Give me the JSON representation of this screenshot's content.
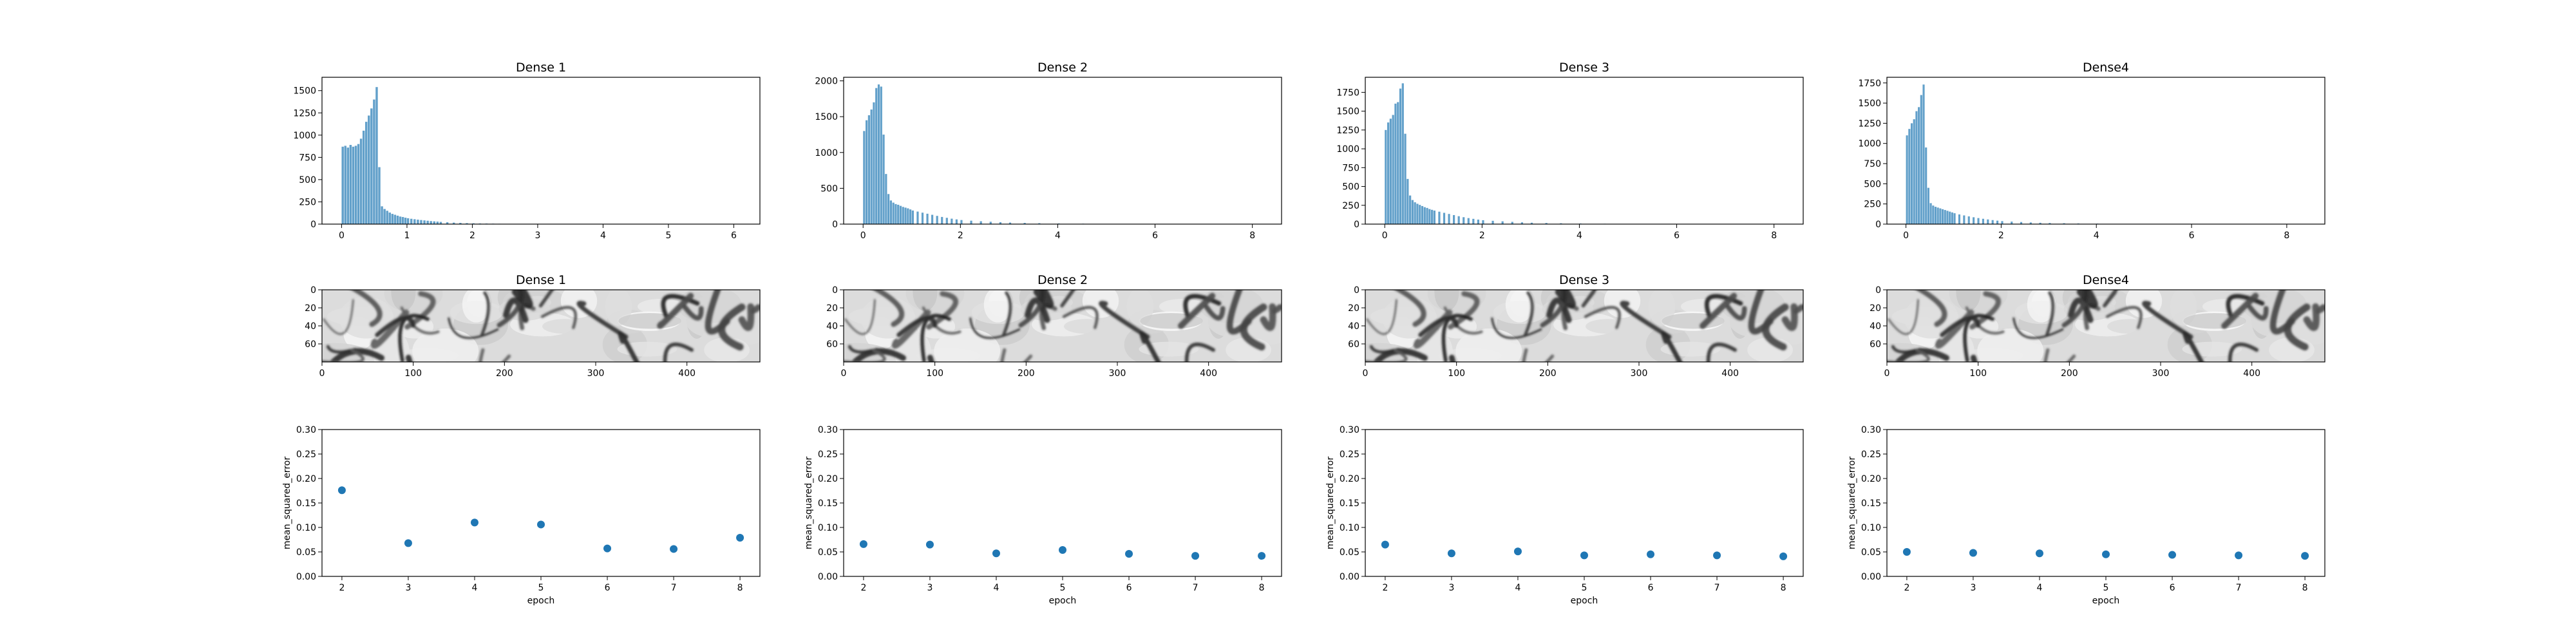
{
  "colors": {
    "series": "#1f77b4",
    "image_dark": "#202020",
    "image_light": "#f2f2f2"
  },
  "chart_data": [
    {
      "type": "bar",
      "panel": "hist-1",
      "title": "Dense 1",
      "xlim": [
        -0.3,
        6.4
      ],
      "ylim": [
        0,
        1650
      ],
      "xticks": [
        0,
        1,
        2,
        3,
        4,
        5,
        6
      ],
      "yticks": [
        0,
        250,
        500,
        750,
        1000,
        1250,
        1500
      ],
      "bin_width": 0.04,
      "bins": [
        [
          0,
          870
        ],
        [
          0.04,
          880
        ],
        [
          0.08,
          860
        ],
        [
          0.12,
          890
        ],
        [
          0.16,
          870
        ],
        [
          0.2,
          880
        ],
        [
          0.24,
          900
        ],
        [
          0.28,
          960
        ],
        [
          0.32,
          1050
        ],
        [
          0.36,
          1150
        ],
        [
          0.4,
          1220
        ],
        [
          0.44,
          1300
        ],
        [
          0.48,
          1400
        ],
        [
          0.52,
          1540
        ],
        [
          0.56,
          640
        ],
        [
          0.6,
          200
        ],
        [
          0.64,
          170
        ],
        [
          0.68,
          150
        ],
        [
          0.72,
          130
        ],
        [
          0.76,
          115
        ],
        [
          0.8,
          105
        ],
        [
          0.84,
          95
        ],
        [
          0.88,
          85
        ],
        [
          0.92,
          80
        ],
        [
          0.96,
          72
        ],
        [
          1.0,
          66
        ],
        [
          1.05,
          60
        ],
        [
          1.1,
          55
        ],
        [
          1.15,
          50
        ],
        [
          1.2,
          46
        ],
        [
          1.25,
          42
        ],
        [
          1.3,
          38
        ],
        [
          1.35,
          34
        ],
        [
          1.4,
          31
        ],
        [
          1.45,
          28
        ],
        [
          1.5,
          25
        ],
        [
          1.6,
          21
        ],
        [
          1.7,
          17
        ],
        [
          1.8,
          14
        ],
        [
          1.9,
          11
        ],
        [
          2.0,
          9
        ],
        [
          2.1,
          7
        ],
        [
          2.2,
          6
        ],
        [
          2.3,
          5
        ],
        [
          2.4,
          4
        ],
        [
          2.5,
          3
        ],
        [
          2.6,
          2
        ],
        [
          2.8,
          1
        ]
      ]
    },
    {
      "type": "bar",
      "panel": "hist-2",
      "title": "Dense 2",
      "xlim": [
        -0.4,
        8.6
      ],
      "ylim": [
        0,
        2050
      ],
      "xticks": [
        0,
        2,
        4,
        6,
        8
      ],
      "yticks": [
        0,
        500,
        1000,
        1500,
        2000
      ],
      "bin_width": 0.05,
      "bins": [
        [
          0,
          1300
        ],
        [
          0.05,
          1450
        ],
        [
          0.1,
          1520
        ],
        [
          0.15,
          1600
        ],
        [
          0.2,
          1700
        ],
        [
          0.25,
          1900
        ],
        [
          0.3,
          1950
        ],
        [
          0.35,
          1920
        ],
        [
          0.4,
          1250
        ],
        [
          0.45,
          700
        ],
        [
          0.5,
          420
        ],
        [
          0.55,
          330
        ],
        [
          0.6,
          300
        ],
        [
          0.65,
          280
        ],
        [
          0.7,
          270
        ],
        [
          0.75,
          255
        ],
        [
          0.8,
          240
        ],
        [
          0.85,
          230
        ],
        [
          0.9,
          220
        ],
        [
          0.95,
          205
        ],
        [
          1.0,
          190
        ],
        [
          1.1,
          175
        ],
        [
          1.2,
          160
        ],
        [
          1.3,
          145
        ],
        [
          1.4,
          130
        ],
        [
          1.5,
          115
        ],
        [
          1.6,
          100
        ],
        [
          1.7,
          88
        ],
        [
          1.8,
          76
        ],
        [
          1.9,
          66
        ],
        [
          2.0,
          57
        ],
        [
          2.2,
          48
        ],
        [
          2.4,
          40
        ],
        [
          2.6,
          33
        ],
        [
          2.8,
          27
        ],
        [
          3.0,
          22
        ],
        [
          3.3,
          17
        ],
        [
          3.6,
          13
        ],
        [
          4.0,
          9
        ],
        [
          4.5,
          6
        ],
        [
          5.0,
          4
        ],
        [
          5.5,
          3
        ],
        [
          6.0,
          2
        ],
        [
          7.0,
          1
        ]
      ]
    },
    {
      "type": "bar",
      "panel": "hist-3",
      "title": "Dense 3",
      "xlim": [
        -0.4,
        8.6
      ],
      "ylim": [
        0,
        1950
      ],
      "xticks": [
        0,
        2,
        4,
        6,
        8
      ],
      "yticks": [
        0,
        250,
        500,
        750,
        1000,
        1250,
        1500,
        1750
      ],
      "bin_width": 0.05,
      "bins": [
        [
          0,
          1250
        ],
        [
          0.05,
          1350
        ],
        [
          0.1,
          1400
        ],
        [
          0.15,
          1450
        ],
        [
          0.2,
          1600
        ],
        [
          0.25,
          1620
        ],
        [
          0.3,
          1800
        ],
        [
          0.35,
          1870
        ],
        [
          0.4,
          1200
        ],
        [
          0.45,
          600
        ],
        [
          0.5,
          380
        ],
        [
          0.55,
          320
        ],
        [
          0.6,
          290
        ],
        [
          0.65,
          270
        ],
        [
          0.7,
          255
        ],
        [
          0.75,
          240
        ],
        [
          0.8,
          225
        ],
        [
          0.85,
          215
        ],
        [
          0.9,
          200
        ],
        [
          0.95,
          190
        ],
        [
          1.0,
          180
        ],
        [
          1.1,
          165
        ],
        [
          1.2,
          150
        ],
        [
          1.3,
          135
        ],
        [
          1.4,
          120
        ],
        [
          1.5,
          105
        ],
        [
          1.6,
          92
        ],
        [
          1.7,
          80
        ],
        [
          1.8,
          70
        ],
        [
          1.9,
          60
        ],
        [
          2.0,
          52
        ],
        [
          2.2,
          44
        ],
        [
          2.4,
          37
        ],
        [
          2.6,
          30
        ],
        [
          2.8,
          24
        ],
        [
          3.0,
          19
        ],
        [
          3.3,
          15
        ],
        [
          3.6,
          11
        ],
        [
          4.0,
          8
        ],
        [
          4.5,
          5
        ],
        [
          5.0,
          3
        ],
        [
          6.0,
          2
        ],
        [
          7.0,
          1
        ]
      ]
    },
    {
      "type": "bar",
      "panel": "hist-4",
      "title": "Dense4",
      "xlim": [
        -0.4,
        8.8
      ],
      "ylim": [
        0,
        1820
      ],
      "xticks": [
        0,
        2,
        4,
        6,
        8
      ],
      "yticks": [
        0,
        250,
        500,
        750,
        1000,
        1250,
        1500,
        1750
      ],
      "bin_width": 0.05,
      "bins": [
        [
          0,
          1100
        ],
        [
          0.05,
          1180
        ],
        [
          0.1,
          1250
        ],
        [
          0.15,
          1300
        ],
        [
          0.2,
          1400
        ],
        [
          0.25,
          1450
        ],
        [
          0.3,
          1600
        ],
        [
          0.35,
          1730
        ],
        [
          0.4,
          950
        ],
        [
          0.45,
          450
        ],
        [
          0.5,
          260
        ],
        [
          0.55,
          230
        ],
        [
          0.6,
          215
        ],
        [
          0.65,
          205
        ],
        [
          0.7,
          195
        ],
        [
          0.75,
          185
        ],
        [
          0.8,
          175
        ],
        [
          0.85,
          165
        ],
        [
          0.9,
          155
        ],
        [
          0.95,
          145
        ],
        [
          1.0,
          135
        ],
        [
          1.1,
          120
        ],
        [
          1.2,
          108
        ],
        [
          1.3,
          96
        ],
        [
          1.4,
          85
        ],
        [
          1.5,
          75
        ],
        [
          1.6,
          66
        ],
        [
          1.7,
          58
        ],
        [
          1.8,
          50
        ],
        [
          1.9,
          43
        ],
        [
          2.0,
          37
        ],
        [
          2.2,
          31
        ],
        [
          2.4,
          26
        ],
        [
          2.6,
          21
        ],
        [
          2.8,
          17
        ],
        [
          3.0,
          14
        ],
        [
          3.3,
          11
        ],
        [
          3.6,
          8
        ],
        [
          4.0,
          6
        ],
        [
          4.5,
          4
        ],
        [
          5.0,
          3
        ],
        [
          6.0,
          2
        ],
        [
          7.0,
          1
        ]
      ]
    },
    {
      "type": "heatmap",
      "panel": "image-1",
      "title": "Dense 1",
      "colormap": "gray",
      "xlim": [
        0,
        480
      ],
      "ylim": [
        80,
        0
      ],
      "xticks": [
        0,
        100,
        200,
        300,
        400
      ],
      "yticks": [
        0,
        20,
        40,
        60
      ]
    },
    {
      "type": "heatmap",
      "panel": "image-2",
      "title": "Dense 2",
      "colormap": "gray",
      "xlim": [
        0,
        480
      ],
      "ylim": [
        80,
        0
      ],
      "xticks": [
        0,
        100,
        200,
        300,
        400
      ],
      "yticks": [
        0,
        20,
        40,
        60
      ]
    },
    {
      "type": "heatmap",
      "panel": "image-3",
      "title": "Dense 3",
      "colormap": "gray",
      "xlim": [
        0,
        480
      ],
      "ylim": [
        80,
        0
      ],
      "xticks": [
        0,
        100,
        200,
        300,
        400
      ],
      "yticks": [
        0,
        20,
        40,
        60
      ]
    },
    {
      "type": "heatmap",
      "panel": "image-4",
      "title": "Dense4",
      "colormap": "gray",
      "xlim": [
        0,
        480
      ],
      "ylim": [
        80,
        0
      ],
      "xticks": [
        0,
        100,
        200,
        300,
        400
      ],
      "yticks": [
        0,
        20,
        40,
        60
      ]
    },
    {
      "type": "scatter",
      "panel": "mse-1",
      "title": "",
      "xlabel": "epoch",
      "ylabel": "mean_squared_error",
      "xlim": [
        1.7,
        8.3
      ],
      "ylim": [
        0,
        0.3
      ],
      "xticks": [
        2,
        3,
        4,
        5,
        6,
        7,
        8
      ],
      "yticks": [
        0.0,
        0.05,
        0.1,
        0.15,
        0.2,
        0.25,
        0.3
      ],
      "x": [
        2,
        3,
        4,
        5,
        6,
        7,
        8
      ],
      "y": [
        0.176,
        0.068,
        0.11,
        0.106,
        0.057,
        0.056,
        0.079
      ]
    },
    {
      "type": "scatter",
      "panel": "mse-2",
      "title": "",
      "xlabel": "epoch",
      "ylabel": "mean_squared_error",
      "xlim": [
        1.7,
        8.3
      ],
      "ylim": [
        0,
        0.3
      ],
      "xticks": [
        2,
        3,
        4,
        5,
        6,
        7,
        8
      ],
      "yticks": [
        0.0,
        0.05,
        0.1,
        0.15,
        0.2,
        0.25,
        0.3
      ],
      "x": [
        2,
        3,
        4,
        5,
        6,
        7,
        8
      ],
      "y": [
        0.066,
        0.065,
        0.047,
        0.054,
        0.046,
        0.042,
        0.042
      ]
    },
    {
      "type": "scatter",
      "panel": "mse-3",
      "title": "",
      "xlabel": "epoch",
      "ylabel": "mean_squared_error",
      "xlim": [
        1.7,
        8.3
      ],
      "ylim": [
        0,
        0.3
      ],
      "xticks": [
        2,
        3,
        4,
        5,
        6,
        7,
        8
      ],
      "yticks": [
        0.0,
        0.05,
        0.1,
        0.15,
        0.2,
        0.25,
        0.3
      ],
      "x": [
        2,
        3,
        4,
        5,
        6,
        7,
        8
      ],
      "y": [
        0.065,
        0.047,
        0.051,
        0.043,
        0.045,
        0.043,
        0.041
      ]
    },
    {
      "type": "scatter",
      "panel": "mse-4",
      "title": "",
      "xlabel": "epoch",
      "ylabel": "mean_squared_error",
      "xlim": [
        1.7,
        8.3
      ],
      "ylim": [
        0,
        0.3
      ],
      "xticks": [
        2,
        3,
        4,
        5,
        6,
        7,
        8
      ],
      "yticks": [
        0.0,
        0.05,
        0.1,
        0.15,
        0.2,
        0.25,
        0.3
      ],
      "x": [
        2,
        3,
        4,
        5,
        6,
        7,
        8
      ],
      "y": [
        0.05,
        0.048,
        0.047,
        0.045,
        0.044,
        0.043,
        0.042
      ]
    }
  ]
}
